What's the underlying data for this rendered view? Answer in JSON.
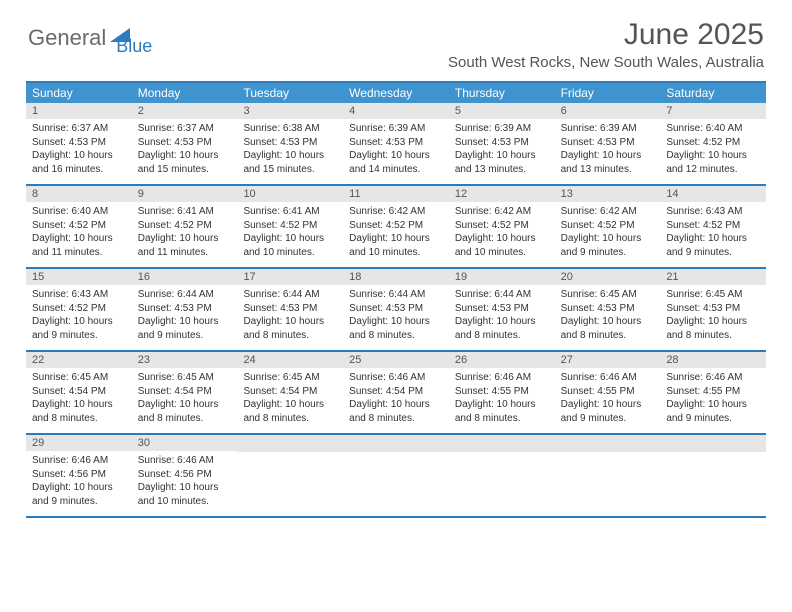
{
  "logo": {
    "text1": "General",
    "text2": "Blue"
  },
  "title": "June 2025",
  "location": "South West Rocks, New South Wales, Australia",
  "colors": {
    "header_bar": "#3f93ce",
    "border": "#2b7bbf",
    "daynum_bg": "#e6e6e6",
    "text_dark": "#333333",
    "text_mid": "#555555"
  },
  "dow": [
    "Sunday",
    "Monday",
    "Tuesday",
    "Wednesday",
    "Thursday",
    "Friday",
    "Saturday"
  ],
  "weeks": [
    [
      {
        "n": "1",
        "sr": "Sunrise: 6:37 AM",
        "ss": "Sunset: 4:53 PM",
        "d1": "Daylight: 10 hours",
        "d2": "and 16 minutes."
      },
      {
        "n": "2",
        "sr": "Sunrise: 6:37 AM",
        "ss": "Sunset: 4:53 PM",
        "d1": "Daylight: 10 hours",
        "d2": "and 15 minutes."
      },
      {
        "n": "3",
        "sr": "Sunrise: 6:38 AM",
        "ss": "Sunset: 4:53 PM",
        "d1": "Daylight: 10 hours",
        "d2": "and 15 minutes."
      },
      {
        "n": "4",
        "sr": "Sunrise: 6:39 AM",
        "ss": "Sunset: 4:53 PM",
        "d1": "Daylight: 10 hours",
        "d2": "and 14 minutes."
      },
      {
        "n": "5",
        "sr": "Sunrise: 6:39 AM",
        "ss": "Sunset: 4:53 PM",
        "d1": "Daylight: 10 hours",
        "d2": "and 13 minutes."
      },
      {
        "n": "6",
        "sr": "Sunrise: 6:39 AM",
        "ss": "Sunset: 4:53 PM",
        "d1": "Daylight: 10 hours",
        "d2": "and 13 minutes."
      },
      {
        "n": "7",
        "sr": "Sunrise: 6:40 AM",
        "ss": "Sunset: 4:52 PM",
        "d1": "Daylight: 10 hours",
        "d2": "and 12 minutes."
      }
    ],
    [
      {
        "n": "8",
        "sr": "Sunrise: 6:40 AM",
        "ss": "Sunset: 4:52 PM",
        "d1": "Daylight: 10 hours",
        "d2": "and 11 minutes."
      },
      {
        "n": "9",
        "sr": "Sunrise: 6:41 AM",
        "ss": "Sunset: 4:52 PM",
        "d1": "Daylight: 10 hours",
        "d2": "and 11 minutes."
      },
      {
        "n": "10",
        "sr": "Sunrise: 6:41 AM",
        "ss": "Sunset: 4:52 PM",
        "d1": "Daylight: 10 hours",
        "d2": "and 10 minutes."
      },
      {
        "n": "11",
        "sr": "Sunrise: 6:42 AM",
        "ss": "Sunset: 4:52 PM",
        "d1": "Daylight: 10 hours",
        "d2": "and 10 minutes."
      },
      {
        "n": "12",
        "sr": "Sunrise: 6:42 AM",
        "ss": "Sunset: 4:52 PM",
        "d1": "Daylight: 10 hours",
        "d2": "and 10 minutes."
      },
      {
        "n": "13",
        "sr": "Sunrise: 6:42 AM",
        "ss": "Sunset: 4:52 PM",
        "d1": "Daylight: 10 hours",
        "d2": "and 9 minutes."
      },
      {
        "n": "14",
        "sr": "Sunrise: 6:43 AM",
        "ss": "Sunset: 4:52 PM",
        "d1": "Daylight: 10 hours",
        "d2": "and 9 minutes."
      }
    ],
    [
      {
        "n": "15",
        "sr": "Sunrise: 6:43 AM",
        "ss": "Sunset: 4:52 PM",
        "d1": "Daylight: 10 hours",
        "d2": "and 9 minutes."
      },
      {
        "n": "16",
        "sr": "Sunrise: 6:44 AM",
        "ss": "Sunset: 4:53 PM",
        "d1": "Daylight: 10 hours",
        "d2": "and 9 minutes."
      },
      {
        "n": "17",
        "sr": "Sunrise: 6:44 AM",
        "ss": "Sunset: 4:53 PM",
        "d1": "Daylight: 10 hours",
        "d2": "and 8 minutes."
      },
      {
        "n": "18",
        "sr": "Sunrise: 6:44 AM",
        "ss": "Sunset: 4:53 PM",
        "d1": "Daylight: 10 hours",
        "d2": "and 8 minutes."
      },
      {
        "n": "19",
        "sr": "Sunrise: 6:44 AM",
        "ss": "Sunset: 4:53 PM",
        "d1": "Daylight: 10 hours",
        "d2": "and 8 minutes."
      },
      {
        "n": "20",
        "sr": "Sunrise: 6:45 AM",
        "ss": "Sunset: 4:53 PM",
        "d1": "Daylight: 10 hours",
        "d2": "and 8 minutes."
      },
      {
        "n": "21",
        "sr": "Sunrise: 6:45 AM",
        "ss": "Sunset: 4:53 PM",
        "d1": "Daylight: 10 hours",
        "d2": "and 8 minutes."
      }
    ],
    [
      {
        "n": "22",
        "sr": "Sunrise: 6:45 AM",
        "ss": "Sunset: 4:54 PM",
        "d1": "Daylight: 10 hours",
        "d2": "and 8 minutes."
      },
      {
        "n": "23",
        "sr": "Sunrise: 6:45 AM",
        "ss": "Sunset: 4:54 PM",
        "d1": "Daylight: 10 hours",
        "d2": "and 8 minutes."
      },
      {
        "n": "24",
        "sr": "Sunrise: 6:45 AM",
        "ss": "Sunset: 4:54 PM",
        "d1": "Daylight: 10 hours",
        "d2": "and 8 minutes."
      },
      {
        "n": "25",
        "sr": "Sunrise: 6:46 AM",
        "ss": "Sunset: 4:54 PM",
        "d1": "Daylight: 10 hours",
        "d2": "and 8 minutes."
      },
      {
        "n": "26",
        "sr": "Sunrise: 6:46 AM",
        "ss": "Sunset: 4:55 PM",
        "d1": "Daylight: 10 hours",
        "d2": "and 8 minutes."
      },
      {
        "n": "27",
        "sr": "Sunrise: 6:46 AM",
        "ss": "Sunset: 4:55 PM",
        "d1": "Daylight: 10 hours",
        "d2": "and 9 minutes."
      },
      {
        "n": "28",
        "sr": "Sunrise: 6:46 AM",
        "ss": "Sunset: 4:55 PM",
        "d1": "Daylight: 10 hours",
        "d2": "and 9 minutes."
      }
    ],
    [
      {
        "n": "29",
        "sr": "Sunrise: 6:46 AM",
        "ss": "Sunset: 4:56 PM",
        "d1": "Daylight: 10 hours",
        "d2": "and 9 minutes."
      },
      {
        "n": "30",
        "sr": "Sunrise: 6:46 AM",
        "ss": "Sunset: 4:56 PM",
        "d1": "Daylight: 10 hours",
        "d2": "and 10 minutes."
      },
      {
        "empty": true
      },
      {
        "empty": true
      },
      {
        "empty": true
      },
      {
        "empty": true
      },
      {
        "empty": true
      }
    ]
  ]
}
